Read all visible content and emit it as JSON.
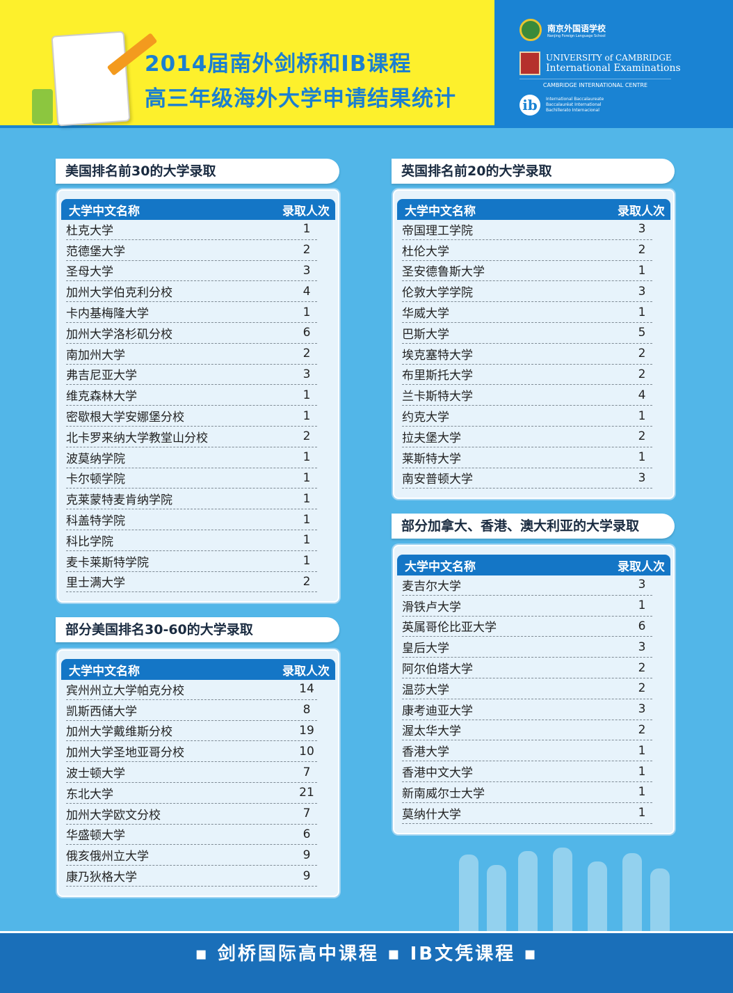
{
  "header": {
    "title_line1": "2014届南外剑桥和IB课程",
    "title_line2": "高三年级海外大学申请结果统计"
  },
  "logos": {
    "nfls_cn": "南京外国语学校",
    "nfls_en": "Nanjing Foreign Language School",
    "cam1": "UNIVERSITY of CAMBRIDGE",
    "cam2": "International Examinations",
    "cam_centre": "CAMBRIDGE INTERNATIONAL CENTRE",
    "ib_mark": "ib",
    "ib1": "International Baccalaureate",
    "ib2": "Baccalauréat International",
    "ib3": "Bachillerato Internacional"
  },
  "columns": {
    "name": "大学中文名称",
    "count": "录取人次"
  },
  "sections": [
    {
      "title": "美国排名前30的大学录取",
      "rows": [
        [
          "杜克大学",
          "1"
        ],
        [
          "范德堡大学",
          "2"
        ],
        [
          "圣母大学",
          "3"
        ],
        [
          "加州大学伯克利分校",
          "4"
        ],
        [
          "卡内基梅隆大学",
          "1"
        ],
        [
          "加州大学洛杉矶分校",
          "6"
        ],
        [
          "南加州大学",
          "2"
        ],
        [
          "弗吉尼亚大学",
          "3"
        ],
        [
          "维克森林大学",
          "1"
        ],
        [
          "密歇根大学安娜堡分校",
          "1"
        ],
        [
          "北卡罗来纳大学教堂山分校",
          "2"
        ],
        [
          "波莫纳学院",
          "1"
        ],
        [
          "卡尔顿学院",
          "1"
        ],
        [
          "克莱蒙特麦肯纳学院",
          "1"
        ],
        [
          "科盖特学院",
          "1"
        ],
        [
          "科比学院",
          "1"
        ],
        [
          "麦卡莱斯特学院",
          "1"
        ],
        [
          "里士满大学",
          "2"
        ]
      ]
    },
    {
      "title": "部分美国排名30-60的大学录取",
      "rows": [
        [
          "宾州州立大学帕克分校",
          "14"
        ],
        [
          "凯斯西储大学",
          "8"
        ],
        [
          "加州大学戴维斯分校",
          "19"
        ],
        [
          "加州大学圣地亚哥分校",
          "10"
        ],
        [
          "波士顿大学",
          "7"
        ],
        [
          "东北大学",
          "21"
        ],
        [
          "加州大学欧文分校",
          "7"
        ],
        [
          "华盛顿大学",
          "6"
        ],
        [
          "俄亥俄州立大学",
          "9"
        ],
        [
          "康乃狄格大学",
          "9"
        ]
      ]
    },
    {
      "title": "英国排名前20的大学录取",
      "rows": [
        [
          "帝国理工学院",
          "3"
        ],
        [
          "杜伦大学",
          "2"
        ],
        [
          "圣安德鲁斯大学",
          "1"
        ],
        [
          "伦敦大学学院",
          "3"
        ],
        [
          "华威大学",
          "1"
        ],
        [
          "巴斯大学",
          "5"
        ],
        [
          "埃克塞特大学",
          "2"
        ],
        [
          "布里斯托大学",
          "2"
        ],
        [
          "兰卡斯特大学",
          "4"
        ],
        [
          "约克大学",
          "1"
        ],
        [
          "拉夫堡大学",
          "2"
        ],
        [
          "莱斯特大学",
          "1"
        ],
        [
          "南安普顿大学",
          "3"
        ]
      ]
    },
    {
      "title": "部分加拿大、香港、澳大利亚的大学录取",
      "rows": [
        [
          "麦吉尔大学",
          "3"
        ],
        [
          "滑铁卢大学",
          "1"
        ],
        [
          "英属哥伦比亚大学",
          "6"
        ],
        [
          "皇后大学",
          "3"
        ],
        [
          "阿尔伯塔大学",
          "2"
        ],
        [
          "温莎大学",
          "2"
        ],
        [
          "康考迪亚大学",
          "3"
        ],
        [
          "渥太华大学",
          "2"
        ],
        [
          "香港大学",
          "1"
        ],
        [
          "香港中文大学",
          "1"
        ],
        [
          "新南威尔士大学",
          "1"
        ],
        [
          "莫纳什大学",
          "1"
        ]
      ]
    }
  ],
  "footer": {
    "text": "▪ 剑桥国际高中课程 ▪ IB文凭课程 ▪"
  }
}
